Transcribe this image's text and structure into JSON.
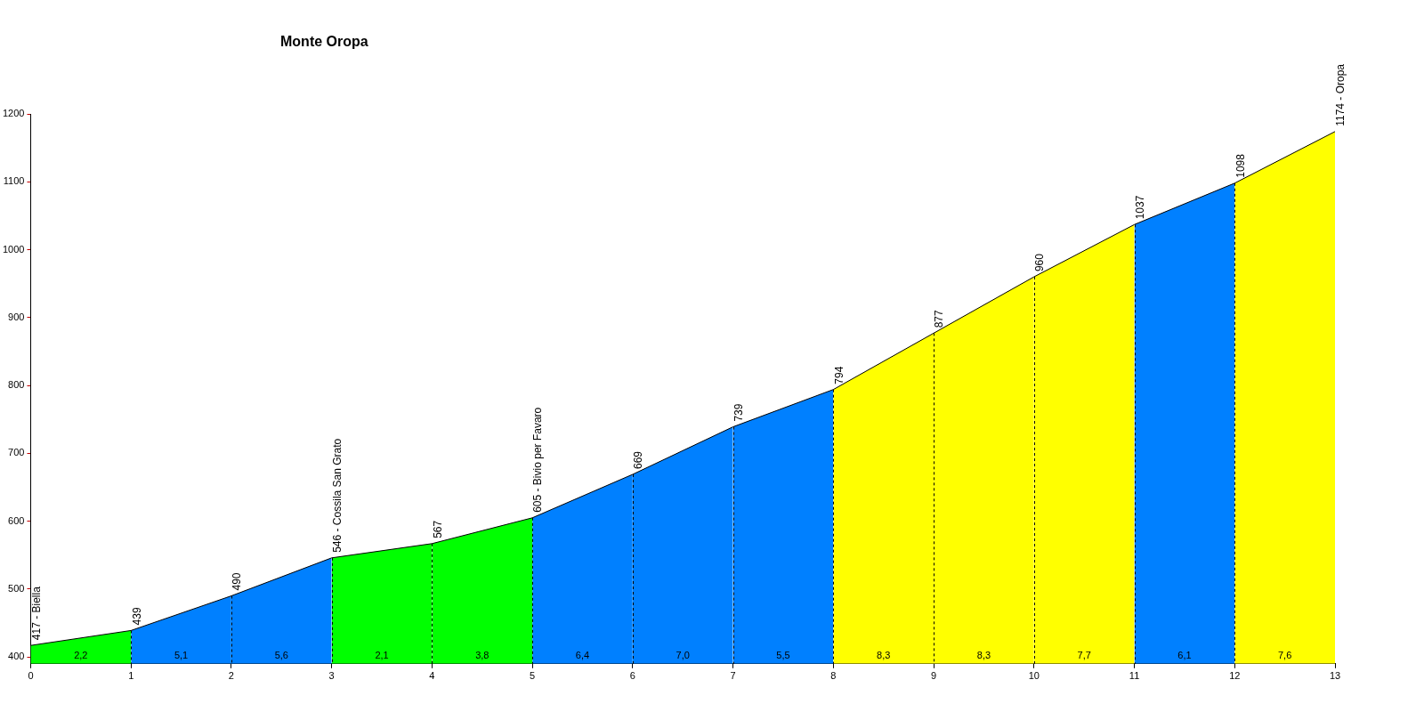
{
  "chart_data": {
    "type": "area",
    "title": "Monte Oropa",
    "series": [
      {
        "color": "#00ff00",
        "x": [
          0,
          1
        ],
        "values": [
          417,
          439
        ],
        "value_labels": [
          "417 - Biella",
          null
        ]
      },
      {
        "color": "#0080ff",
        "x": [
          1,
          2
        ],
        "values": [
          439,
          490
        ],
        "value_labels": [
          "439",
          null
        ]
      },
      {
        "color": "#0080ff",
        "x": [
          2,
          3
        ],
        "values": [
          490,
          546
        ],
        "value_labels": [
          "490",
          null
        ]
      },
      {
        "color": "#00ff00",
        "x": [
          3,
          4
        ],
        "values": [
          546,
          567
        ],
        "value_labels": [
          "546 - Cossila San Grato",
          null
        ]
      },
      {
        "color": "#00ff00",
        "x": [
          4,
          5
        ],
        "values": [
          567,
          605
        ],
        "value_labels": [
          "567",
          null
        ]
      },
      {
        "color": "#0080ff",
        "x": [
          5,
          6
        ],
        "values": [
          605,
          669
        ],
        "value_labels": [
          "605 - Bivio per Favaro",
          null
        ]
      },
      {
        "color": "#0080ff",
        "x": [
          6,
          7
        ],
        "values": [
          669,
          739
        ],
        "value_labels": [
          "669",
          null
        ]
      },
      {
        "color": "#0080ff",
        "x": [
          7,
          8
        ],
        "values": [
          739,
          794
        ],
        "value_labels": [
          "739",
          null
        ]
      },
      {
        "color": "#ffff00",
        "x": [
          8,
          9
        ],
        "values": [
          794,
          877
        ],
        "value_labels": [
          "794",
          null
        ]
      },
      {
        "color": "#ffff00",
        "x": [
          9,
          10
        ],
        "values": [
          877,
          960
        ],
        "value_labels": [
          "877",
          null
        ]
      },
      {
        "color": "#ffff00",
        "x": [
          10,
          11
        ],
        "values": [
          960,
          1037
        ],
        "value_labels": [
          "960",
          null
        ]
      },
      {
        "color": "#0080ff",
        "x": [
          11,
          12
        ],
        "values": [
          1037,
          1098
        ],
        "value_labels": [
          "1037",
          null
        ]
      },
      {
        "color": "#ffff00",
        "x": [
          12,
          13
        ],
        "values": [
          1098,
          1174
        ],
        "value_labels": [
          "1098",
          "1174 - Oropa"
        ]
      }
    ],
    "annotations": [
      "2,2",
      "5,1",
      "5,6",
      "2,1",
      "3,8",
      "6,4",
      "7,0",
      "5,5",
      "8,3",
      "8,3",
      "7,7",
      "6,1",
      "7,6"
    ],
    "xlim": [
      0,
      13
    ],
    "xticks": [
      0,
      1,
      2,
      3,
      4,
      5,
      6,
      7,
      8,
      9,
      10,
      11,
      12,
      13
    ],
    "ylim": [
      390,
      1200
    ],
    "yticks": [
      400,
      500,
      600,
      700,
      800,
      900,
      1000,
      1100,
      1200
    ],
    "grid": "x",
    "legend": false,
    "marker": "none"
  }
}
